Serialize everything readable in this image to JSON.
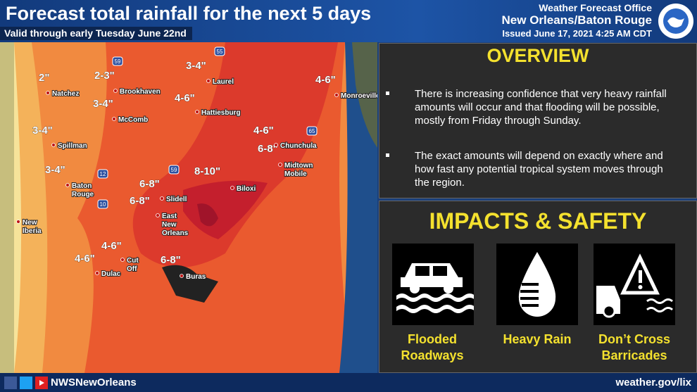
{
  "header": {
    "title": "Forecast total rainfall for the next 5 days",
    "subtitle": "Valid through early Tuesday June 22nd",
    "office": "Weather Forecast Office",
    "location": "New Orleans/Baton Rouge",
    "issued": "Issued June 17, 2021 4:25 AM CDT"
  },
  "map": {
    "amounts": [
      "2\"",
      "2-3\"",
      "3-4\"",
      "4-6\"",
      "3-4\"",
      "4-6\"",
      "3-4\"",
      "4-6\"",
      "6-8\"",
      "8-10\"",
      "3-4\"",
      "6-8\"",
      "6-8\"",
      "4-6\"",
      "4-6\"",
      "6-8\""
    ],
    "cities": [
      [
        "Natchez"
      ],
      [
        "Brookhaven"
      ],
      [
        "Laurel"
      ],
      [
        "Monroeville"
      ],
      [
        "McComb"
      ],
      [
        "Hattiesburg"
      ],
      [
        "Spillman"
      ],
      [
        "Chunchula"
      ],
      [
        "Midtown",
        "Mobile"
      ],
      [
        "Baton",
        "Rouge"
      ],
      [
        "Slidell"
      ],
      [
        "Biloxi"
      ],
      [
        "East",
        "New",
        "Orleans"
      ],
      [
        "New",
        "Iberia"
      ],
      [
        "Dulac"
      ],
      [
        "Cut",
        "Off"
      ],
      [
        "Buras"
      ]
    ],
    "highways": [
      "55",
      "59",
      "65",
      "12",
      "59",
      "10"
    ]
  },
  "overview": {
    "title": "OVERVIEW",
    "bullets": [
      "There is increasing confidence that very heavy rainfall amounts will occur and that flooding will be possible, mostly from Friday through Sunday.",
      "The exact amounts will depend on exactly where and how fast any potential tropical system moves through the region."
    ]
  },
  "impacts": {
    "title": "IMPACTS & SAFETY",
    "items": [
      [
        "Flooded",
        "Roadways"
      ],
      [
        "Heavy Rain"
      ],
      [
        "Don’t Cross",
        "Barricades"
      ]
    ]
  },
  "footer": {
    "handle": "NWSNewOrleans",
    "url": "weather.gov/lix"
  }
}
